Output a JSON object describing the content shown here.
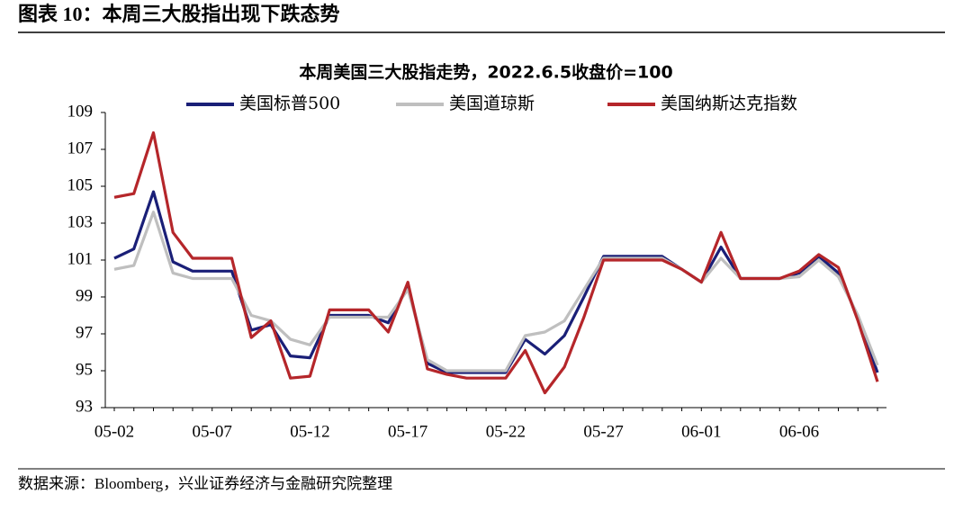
{
  "header": {
    "title": "图表 10：本周三大股指出现下跌态势"
  },
  "source": "数据来源：Bloomberg，兴业证券经济与金融研究院整理",
  "chart_data": {
    "type": "line",
    "title": "本周美国三大股指走势，2022.6.5收盘价=100",
    "categories": [
      "05-02",
      null,
      null,
      null,
      null,
      "05-07",
      null,
      null,
      null,
      null,
      "05-12",
      null,
      null,
      null,
      null,
      "05-17",
      null,
      null,
      null,
      null,
      "05-22",
      null,
      null,
      null,
      null,
      "05-27",
      null,
      null,
      null,
      null,
      "06-01",
      null,
      null,
      null,
      null,
      "06-06",
      null,
      null,
      null,
      null
    ],
    "ylim": [
      93,
      109
    ],
    "yticks": [
      93,
      95,
      97,
      99,
      101,
      103,
      105,
      107,
      109
    ],
    "legend": "top",
    "series": [
      {
        "name": "美国标普500",
        "color": "#1a1f77",
        "values": [
          101.1,
          101.6,
          104.7,
          100.9,
          100.4,
          100.4,
          100.4,
          97.2,
          97.5,
          95.8,
          95.7,
          98.0,
          98.0,
          98.0,
          97.6,
          99.6,
          95.4,
          94.9,
          94.9,
          94.9,
          94.9,
          96.7,
          95.9,
          96.9,
          99.0,
          101.2,
          101.2,
          101.2,
          101.2,
          100.5,
          99.8,
          101.7,
          100.0,
          100.0,
          100.0,
          100.3,
          101.2,
          100.3,
          97.9,
          94.9
        ]
      },
      {
        "name": "美国道琼斯",
        "color": "#bfbfbf",
        "values": [
          100.5,
          100.7,
          103.6,
          100.3,
          100.0,
          100.0,
          100.0,
          98.0,
          97.7,
          96.7,
          96.4,
          97.9,
          97.9,
          97.9,
          97.9,
          99.4,
          95.6,
          95.0,
          95.0,
          95.0,
          95.0,
          96.9,
          97.1,
          97.7,
          99.4,
          101.1,
          101.1,
          101.1,
          101.1,
          100.5,
          99.8,
          101.1,
          100.0,
          100.0,
          100.0,
          100.1,
          101.0,
          100.1,
          98.0,
          95.3
        ]
      },
      {
        "name": "美国纳斯达克指数",
        "color": "#b5262a",
        "values": [
          104.4,
          104.6,
          107.9,
          102.5,
          101.1,
          101.1,
          101.1,
          96.8,
          97.7,
          94.6,
          94.7,
          98.3,
          98.3,
          98.3,
          97.1,
          99.8,
          95.1,
          94.8,
          94.6,
          94.6,
          94.6,
          96.1,
          93.8,
          95.2,
          97.9,
          101.0,
          101.0,
          101.0,
          101.0,
          100.5,
          99.8,
          102.5,
          100.0,
          100.0,
          100.0,
          100.4,
          101.3,
          100.6,
          97.7,
          94.4
        ]
      }
    ]
  }
}
